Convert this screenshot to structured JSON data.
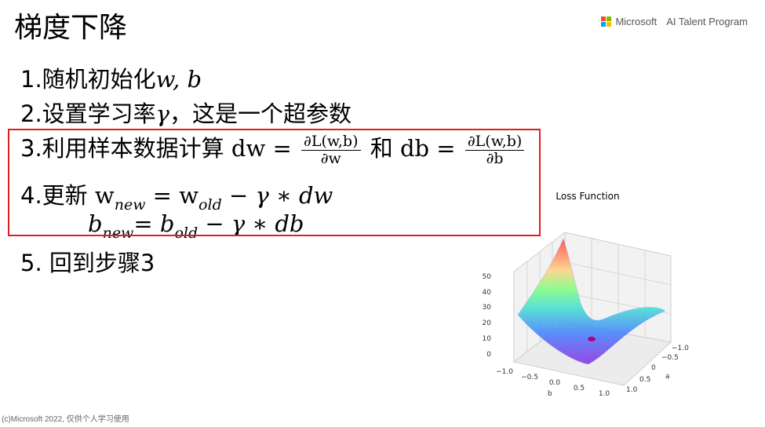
{
  "title": "梯度下降",
  "brand": {
    "company": "Microsoft",
    "program": "AI Talent Program",
    "logo_colors": [
      "#f25022",
      "#7fba00",
      "#00a4ef",
      "#ffb900"
    ]
  },
  "steps": {
    "s1_text": "1.随机初始化",
    "s1_vars": "w, b",
    "s2_text": "2.设置学习率",
    "s2_var": "γ",
    "s2_rest": "，这是一个超参数",
    "s3_text": "3.利用样本数据计算 ",
    "s3_dw": "dw",
    "s3_eq": " = ",
    "s3_num": "∂L(w,b)",
    "s3_den_w": "∂w",
    "s3_and": " 和 ",
    "s3_db": "db",
    "s3_den_b": "∂b",
    "s4_text": "4.更新 ",
    "s4_w": "w",
    "s4_new": "new",
    "s4_eq": " = ",
    "s4_w2": "w",
    "s4_old": "old",
    "s4_rest": " − γ ∗ dw",
    "s4b_b": "b",
    "s4b_new": "new",
    "s4b_eq": "= ",
    "s4b_b2": "b",
    "s4b_old": "old",
    "s4b_rest": " − γ ∗ db",
    "s5_text": "5. 回到步骤3"
  },
  "highlight_color": "#e02020",
  "footer": "(c)Microsoft 2022, 仅供个人学习使用",
  "plot": {
    "title": "Loss Function",
    "z_ticks": [
      "50",
      "40",
      "30",
      "20",
      "10",
      "0"
    ],
    "b_ticks": [
      "−1.0",
      "−0.5",
      "0.0",
      "0.5",
      "1.0"
    ],
    "a_ticks": [
      "−1.0",
      "−0.5",
      "0",
      "0.5",
      "1.0"
    ],
    "xlabel": "b",
    "ylabel": "a"
  }
}
